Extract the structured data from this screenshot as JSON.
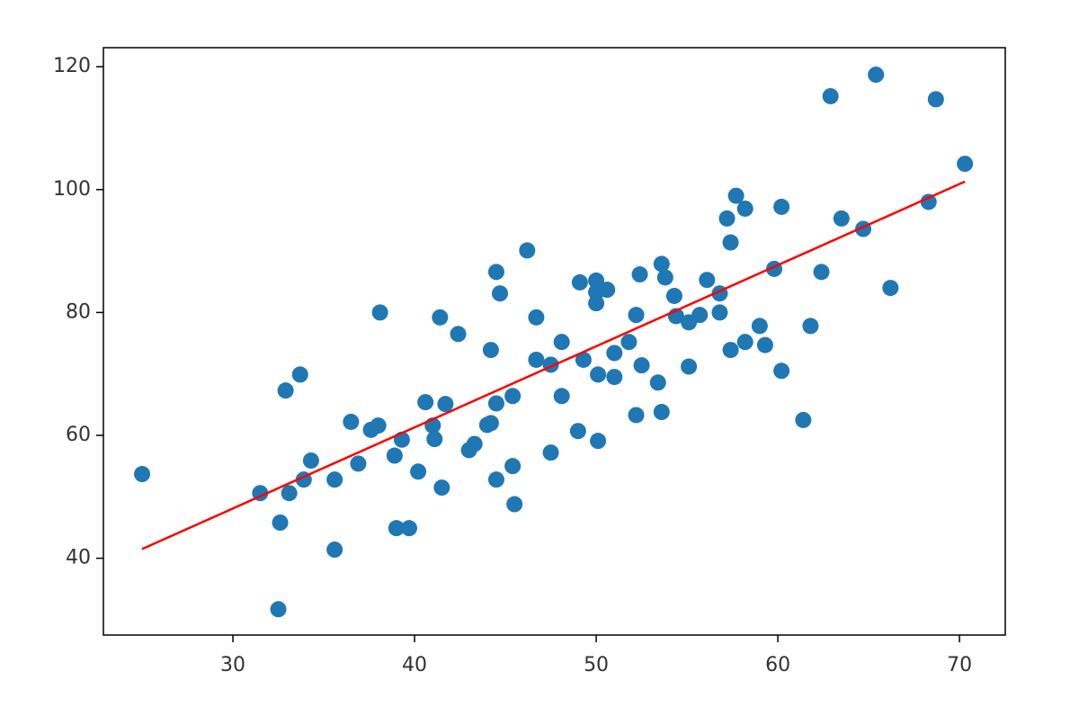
{
  "chart_data": {
    "type": "scatter",
    "xlim": [
      22.87,
      72.52
    ],
    "ylim": [
      27.5,
      123.1
    ],
    "xticks": [
      30,
      40,
      50,
      60,
      70
    ],
    "yticks": [
      40,
      60,
      80,
      100,
      120
    ],
    "grid": false,
    "series": [
      {
        "color": "#1f77b4",
        "kind": "scatter",
        "x": [
          25.0,
          31.5,
          32.6,
          32.5,
          32.9,
          33.7,
          33.1,
          33.9,
          34.3,
          35.6,
          35.6,
          36.5,
          36.9,
          37.6,
          38.0,
          38.1,
          38.9,
          39.3,
          39.0,
          39.7,
          40.2,
          40.6,
          41.0,
          41.1,
          41.4,
          41.5,
          41.7,
          42.4,
          43.0,
          43.3,
          44.0,
          44.2,
          44.2,
          44.5,
          44.5,
          44.5,
          44.7,
          45.4,
          45.5,
          45.4,
          46.2,
          46.7,
          46.7,
          47.5,
          47.5,
          48.1,
          48.1,
          49.0,
          49.1,
          49.3,
          50.0,
          50.0,
          50.0,
          50.1,
          50.1,
          50.6,
          51.0,
          51.0,
          51.8,
          52.2,
          52.2,
          52.4,
          52.5,
          53.4,
          53.6,
          53.6,
          53.8,
          54.3,
          54.4,
          55.1,
          55.1,
          55.7,
          56.1,
          56.8,
          56.8,
          57.2,
          57.4,
          57.4,
          57.7,
          58.2,
          58.2,
          59.0,
          59.3,
          59.8,
          60.2,
          60.2,
          61.4,
          61.8,
          62.4,
          62.9,
          63.5,
          64.7,
          65.4,
          66.2,
          68.3,
          68.7,
          70.3
        ],
        "values": [
          53.7,
          50.6,
          45.8,
          31.7,
          67.3,
          69.9,
          50.6,
          52.8,
          55.9,
          52.8,
          41.4,
          62.2,
          55.4,
          60.9,
          61.6,
          80.0,
          56.7,
          59.3,
          44.9,
          44.9,
          54.1,
          65.4,
          61.6,
          59.4,
          79.2,
          51.5,
          65.1,
          76.5,
          57.6,
          58.6,
          61.7,
          73.9,
          62.0,
          52.8,
          65.2,
          86.6,
          83.1,
          55.0,
          48.8,
          66.4,
          90.1,
          79.2,
          72.3,
          71.5,
          57.2,
          75.2,
          66.4,
          60.7,
          84.9,
          72.3,
          85.2,
          81.5,
          83.3,
          59.1,
          69.9,
          83.7,
          69.5,
          73.4,
          75.2,
          79.6,
          63.3,
          86.2,
          71.4,
          68.6,
          63.8,
          87.9,
          85.7,
          82.7,
          79.4,
          71.2,
          78.4,
          79.6,
          85.3,
          83.1,
          80.0,
          95.3,
          91.4,
          73.9,
          99.0,
          96.9,
          75.2,
          77.8,
          74.7,
          87.1,
          97.2,
          70.5,
          62.5,
          77.8,
          86.6,
          115.2,
          95.3,
          93.6,
          118.7,
          84.0,
          98.0,
          114.7,
          104.2
        ]
      },
      {
        "color": "#ff0000",
        "kind": "line",
        "x": [
          25.0,
          70.3
        ],
        "values": [
          41.5,
          101.3
        ]
      }
    ]
  }
}
